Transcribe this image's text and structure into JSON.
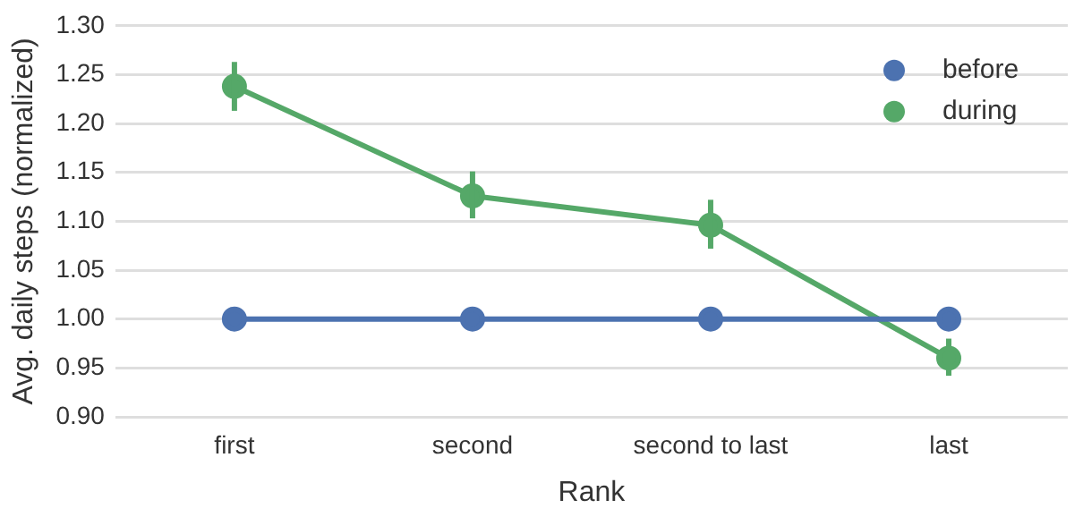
{
  "chart_data": {
    "type": "line",
    "xlabel": "Rank",
    "ylabel": "Avg. daily steps (normalized)",
    "categories": [
      "first",
      "second",
      "second to last",
      "last"
    ],
    "series": [
      {
        "name": "before",
        "color": "#4c72b0",
        "values": [
          1.0,
          1.0,
          1.0,
          1.0
        ]
      },
      {
        "name": "during",
        "color": "#55a868",
        "values": [
          1.238,
          1.126,
          1.096,
          0.96
        ],
        "errors": [
          [
            1.213,
            1.263
          ],
          [
            1.103,
            1.151
          ],
          [
            1.072,
            1.122
          ],
          [
            0.942,
            0.98
          ]
        ]
      }
    ],
    "ylim": [
      0.9,
      1.3
    ],
    "yticks": [
      {
        "value": 0.9,
        "label": "0.90"
      },
      0.95,
      {
        "value": 1.0,
        "label": "1.00"
      },
      1.05,
      {
        "value": 1.1,
        "label": "1.10"
      },
      1.15,
      {
        "value": 1.2,
        "label": "1.20"
      },
      1.25,
      {
        "value": 1.3,
        "label": "1.30"
      }
    ],
    "grid": "y",
    "legend": "top right",
    "marker": "circle",
    "line_style": "solid"
  }
}
